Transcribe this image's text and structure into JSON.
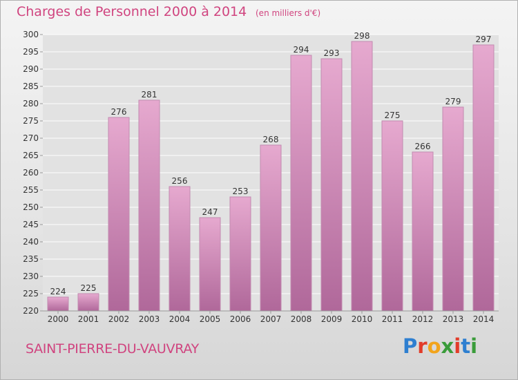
{
  "header": {
    "title": "Charges de Personnel 2000 à 2014",
    "subtitle": "(en milliers d'€)"
  },
  "footer": {
    "location": "SAINT-PIERRE-DU-VAUVRAY",
    "logo_text": "Proxiti"
  },
  "colors": {
    "accent": "#d0447f",
    "bar_top": "#e6a9cf",
    "bar_bottom": "#b0689a",
    "bar_border": "#c28bb0",
    "grid": "#ffffff"
  },
  "chart_data": {
    "type": "bar",
    "title": "Charges de Personnel 2000 à 2014",
    "subtitle": "(en milliers d'€)",
    "xlabel": "",
    "ylabel": "",
    "categories": [
      "2000",
      "2001",
      "2002",
      "2003",
      "2004",
      "2005",
      "2006",
      "2007",
      "2008",
      "2009",
      "2010",
      "2011",
      "2012",
      "2013",
      "2014"
    ],
    "values": [
      224,
      225,
      276,
      281,
      256,
      247,
      253,
      268,
      294,
      293,
      298,
      275,
      266,
      279,
      297
    ],
    "ylim": [
      220,
      300
    ],
    "yticks": [
      220,
      225,
      230,
      235,
      240,
      245,
      250,
      255,
      260,
      265,
      270,
      275,
      280,
      285,
      290,
      295,
      300
    ],
    "grid": true,
    "legend": "none"
  }
}
